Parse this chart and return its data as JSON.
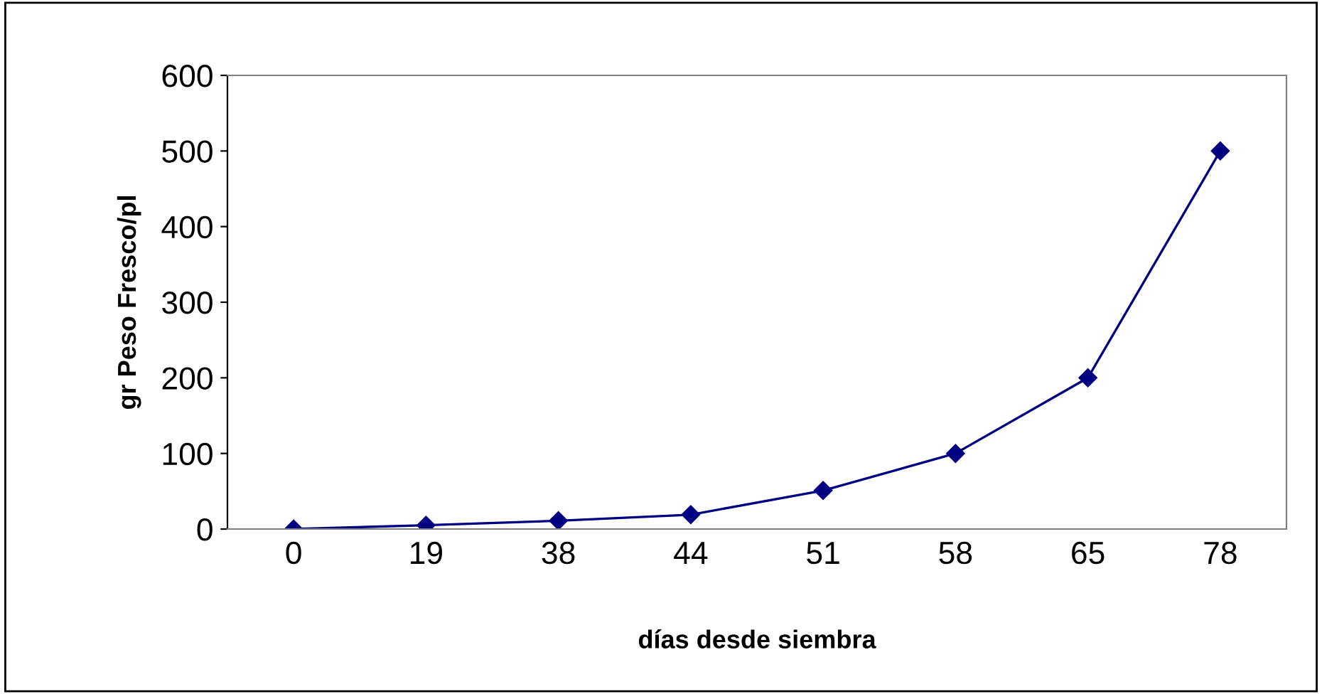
{
  "chart_data": {
    "type": "line",
    "xlabel": "días desde siembra",
    "ylabel": "gr Peso Fresco/pl",
    "categories": [
      "0",
      "19",
      "38",
      "44",
      "51",
      "58",
      "65",
      "78"
    ],
    "series": [
      {
        "color": "#000080",
        "values": [
          0,
          5,
          11,
          19,
          51,
          100,
          200,
          500
        ]
      }
    ],
    "ylim": [
      0,
      600
    ],
    "yticks": [
      0,
      100,
      200,
      300,
      400,
      500,
      600
    ],
    "marker": "diamond",
    "line_style": "solid",
    "grid": false,
    "legend": false
  }
}
